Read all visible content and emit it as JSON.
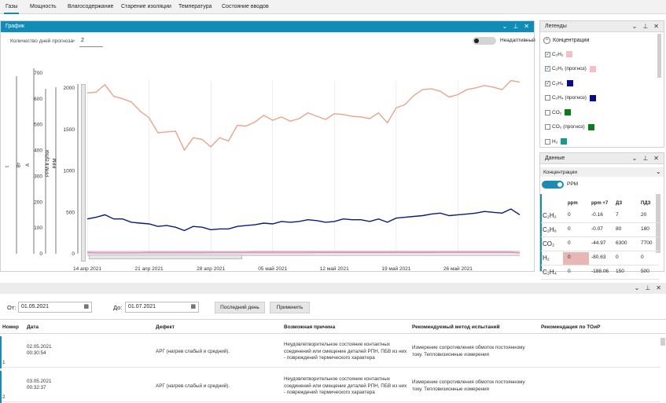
{
  "tabs": [
    "Газы",
    "Мощность",
    "Влагосодержание",
    "Старение изоляции",
    "Температура",
    "Состояние вводов"
  ],
  "graph_panel": {
    "title": "График",
    "forecast_label": "Количество дней прогноза",
    "forecast_clear": "×",
    "forecast_value": "2",
    "toggle_label": "Неадаптивный",
    "axis_labels": [
      "t",
      "Вт",
      "А",
      "PPM в сутки",
      "PPM"
    ],
    "axis_ticks": {
      "a1": [
        "700",
        "600",
        "500",
        "400",
        "300",
        "200",
        "100",
        "0"
      ],
      "ppm": [
        "2000",
        "1500",
        "1000",
        "500",
        "0"
      ]
    },
    "x_ticks": [
      "14 апр 2021",
      "21 апр 2021",
      "28 апр 2021",
      "05 май 2021",
      "12 май 2021",
      "19 май 2021",
      "26 май 2021"
    ]
  },
  "chart_data": {
    "type": "line",
    "x": [
      "14 апр 2021",
      "15",
      "16",
      "17",
      "18",
      "19",
      "20",
      "21",
      "22",
      "23",
      "24",
      "25",
      "26",
      "27",
      "28",
      "29",
      "30",
      "01 май",
      "02",
      "03",
      "04",
      "05",
      "06",
      "07",
      "08",
      "09",
      "10",
      "11",
      "12",
      "13",
      "14",
      "15",
      "16",
      "17",
      "18",
      "19",
      "20",
      "21",
      "22",
      "23",
      "24",
      "25",
      "26",
      "27",
      "28",
      "29",
      "30",
      "31",
      "01 июн",
      "02"
    ],
    "ylabel": "PPM",
    "ylim": [
      0,
      2100
    ],
    "series": [
      {
        "name": "C₂H₂",
        "color": "#e8a48e",
        "values": [
          1940,
          1950,
          2040,
          1900,
          1870,
          1830,
          1720,
          1640,
          1460,
          1470,
          1480,
          1250,
          1400,
          1380,
          1290,
          1400,
          1360,
          1550,
          1540,
          1590,
          1670,
          1610,
          1650,
          1600,
          1630,
          1700,
          1660,
          1620,
          1690,
          1680,
          1660,
          1650,
          1630,
          1700,
          1580,
          1760,
          1800,
          1910,
          1980,
          1990,
          1960,
          1890,
          1920,
          1980,
          2000,
          2030,
          2010,
          1980,
          2090,
          2070
        ]
      },
      {
        "name": "C₂H₄",
        "color": "#0a1a7a",
        "values": [
          420,
          440,
          470,
          420,
          420,
          380,
          370,
          360,
          330,
          340,
          320,
          280,
          330,
          320,
          290,
          300,
          300,
          330,
          340,
          350,
          370,
          360,
          390,
          380,
          390,
          410,
          400,
          380,
          390,
          420,
          410,
          410,
          390,
          420,
          380,
          430,
          440,
          450,
          460,
          480,
          490,
          460,
          470,
          480,
          490,
          510,
          500,
          490,
          540,
          470
        ]
      },
      {
        "name": "CO₂",
        "color": "#b02060",
        "values": [
          20,
          15,
          15,
          15,
          15,
          15,
          15,
          20,
          20,
          20,
          20,
          20,
          20,
          20,
          20,
          20,
          20,
          20,
          20,
          25,
          25,
          25,
          25,
          25,
          25,
          25,
          25,
          25,
          25,
          25,
          25,
          25,
          25,
          25,
          25,
          25,
          25,
          25,
          25,
          25,
          25,
          25,
          25,
          25,
          25,
          25,
          25,
          25,
          25,
          10
        ]
      },
      {
        "name": "H₂",
        "color": "#1a1a60",
        "values": [
          10,
          8,
          8,
          8,
          8,
          8,
          10,
          10,
          10,
          10,
          10,
          10,
          10,
          10,
          12,
          12,
          12,
          12,
          12,
          12,
          12,
          12,
          12,
          12,
          12,
          12,
          14,
          14,
          14,
          14,
          14,
          14,
          14,
          14,
          14,
          14,
          14,
          14,
          14,
          14,
          16,
          16,
          16,
          16,
          16,
          16,
          16,
          16,
          16,
          8
        ]
      }
    ]
  },
  "legend_panel": {
    "title": "Легенды",
    "group": "Концентрации",
    "items": [
      {
        "label": "C₂H₂",
        "checked": true,
        "color": "#f4bfc8"
      },
      {
        "label": "C₂H₂ (прогноз)",
        "checked": true,
        "color": "#f4bfc8"
      },
      {
        "label": "C₂H₄",
        "checked": true,
        "color": "#0a0a8a"
      },
      {
        "label": "C₂H₄ (прогноз)",
        "checked": false,
        "color": "#0a0a8a"
      },
      {
        "label": "CO₂",
        "checked": false,
        "color": "#0a7a1a"
      },
      {
        "label": "CO₂ (прогноз)",
        "checked": false,
        "color": "#0a7a1a"
      },
      {
        "label": "H₂",
        "checked": false,
        "color": "#1a9a8a"
      }
    ]
  },
  "data_panel": {
    "title": "Данные",
    "group": "Концентрации",
    "toggle_label": "PPM",
    "columns": [
      "ppm",
      "ppm +7",
      "ДЗ",
      "ПДЗ"
    ],
    "rows": [
      {
        "gas": "C₂H₂",
        "ppm": "0",
        "ppm7": "-0.16",
        "dz": "7",
        "pdz": "20",
        "hl": false
      },
      {
        "gas": "C₂H₆",
        "ppm": "0",
        "ppm7": "-0.07",
        "dz": "80",
        "pdz": "180",
        "hl": false
      },
      {
        "gas": "CO₂",
        "ppm": "0",
        "ppm7": "-44.97",
        "dz": "6300",
        "pdz": "7700",
        "hl": false
      },
      {
        "gas": "H₂",
        "ppm": "0",
        "ppm7": "-80.63",
        "dz": "0",
        "pdz": "0",
        "hl": true
      },
      {
        "gas": "C₂H₄",
        "ppm": "0",
        "ppm7": "-188.06",
        "dz": "150",
        "pdz": "500",
        "hl": false
      }
    ]
  },
  "filter": {
    "from_label": "От:",
    "from_value": "01.05.2021",
    "to_label": "До:",
    "to_value": "01.07.2021",
    "last_day_button": "Последний день",
    "apply_button": "Применить"
  },
  "table": {
    "columns": [
      "Номер",
      "Дата",
      "Дефект",
      "Возможная причина",
      "Рекомендуемый метод испытаний",
      "Рекомендация по ТОиР"
    ],
    "rows": [
      {
        "num": "1",
        "date": "02.05.2021",
        "time": "00:30:54",
        "defect": "АРГ (нагрев слабый и средний).",
        "cause": "Неудовлетворительное состояние контактных соединений или смещение деталей РПН, ПБВ из них - повреждений термического характера",
        "method": "Измерение сопротивления обмоток постоянному току. Тепловизионные измерения"
      },
      {
        "num": "2",
        "date": "03.05.2021",
        "time": "00:32:37",
        "defect": "АРГ (нагрев слабый и средний).",
        "cause": "Неудовлетворительное состояние контактных соединений или смещение деталей РПН, ПБВ из них - повреждений термического характера",
        "method": "Измерение сопротивления обмоток постоянному току. Тепловизионные измерения"
      }
    ]
  }
}
